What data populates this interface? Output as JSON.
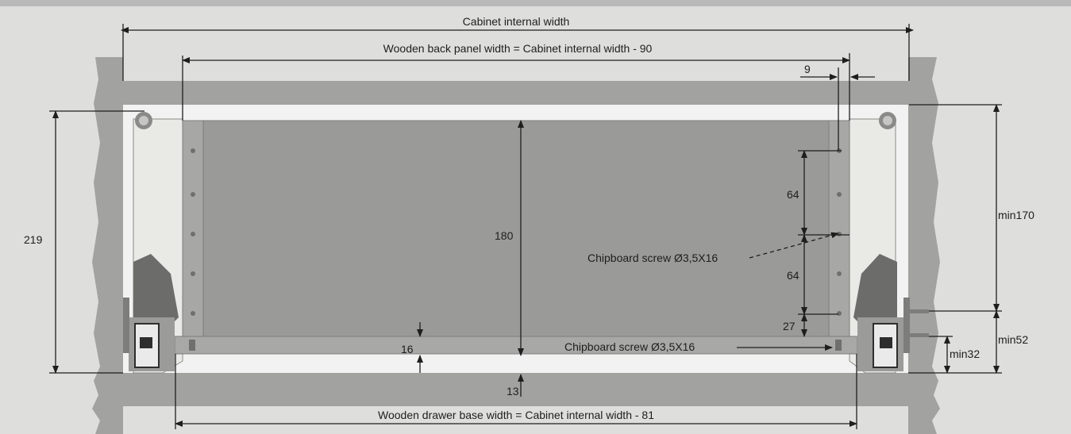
{
  "labels": {
    "cabinet_internal_width": "Cabinet internal width",
    "back_panel_width": "Wooden back panel width = Cabinet internal width - 90",
    "base_width": "Wooden drawer base width = Cabinet internal width - 81",
    "dim_9": "9",
    "dim_219": "219",
    "dim_180": "180",
    "dim_64a": "64",
    "dim_64b": "64",
    "dim_27": "27",
    "dim_16": "16",
    "dim_13": "13",
    "min170": "min170",
    "min52": "min52",
    "min32": "min32",
    "screw_upper": "Chipboard screw Ø3,5X16",
    "screw_lower": "Chipboard screw Ø3,5X16"
  },
  "colors": {
    "background": "#dededd",
    "cabinet": "#a2a2a0",
    "panel": "#9a9a98",
    "inner": "#f2f2f2",
    "side": "#e9e9e6",
    "line": "#1e1e1e"
  }
}
